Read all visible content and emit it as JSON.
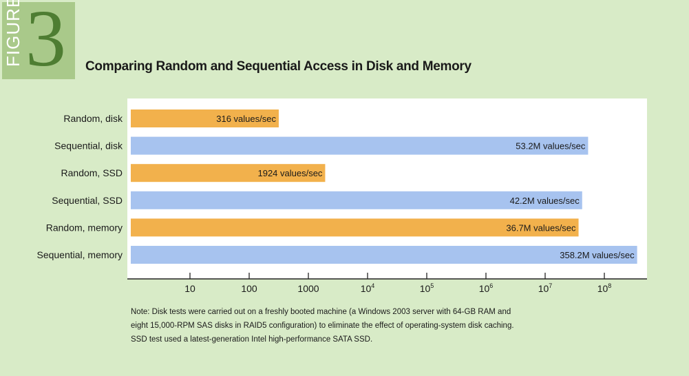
{
  "figure": {
    "label": "FIGURE",
    "number": "3"
  },
  "colors": {
    "orange": "#f2b14c",
    "blue": "#a7c3ef",
    "background": "#d8ebc7",
    "plot_bg": "#ffffff"
  },
  "chart_data": {
    "type": "bar",
    "orientation": "horizontal",
    "title": "Comparing Random and Sequential Access in Disk and Memory",
    "xscale": "log",
    "xlim": [
      1,
      1000000000
    ],
    "grid": false,
    "categories": [
      "Random, disk",
      "Sequential, disk",
      "Random, SSD",
      "Sequential, SSD",
      "Random, memory",
      "Sequential, memory"
    ],
    "values": [
      316,
      53200000,
      1924,
      42200000,
      36700000,
      358200000
    ],
    "value_labels": [
      "316 values/sec",
      "53.2M values/sec",
      "1924 values/sec",
      "42.2M values/sec",
      "36.7M values/sec",
      "358.2M values/sec"
    ],
    "bar_colors": [
      "#f2b14c",
      "#a7c3ef",
      "#f2b14c",
      "#a7c3ef",
      "#f2b14c",
      "#a7c3ef"
    ],
    "ticks": [
      {
        "value": 10,
        "base": "10",
        "exp": ""
      },
      {
        "value": 100,
        "base": "100",
        "exp": ""
      },
      {
        "value": 1000,
        "base": "1000",
        "exp": ""
      },
      {
        "value": 10000,
        "base": "10",
        "exp": "4"
      },
      {
        "value": 100000,
        "base": "10",
        "exp": "5"
      },
      {
        "value": 1000000,
        "base": "10",
        "exp": "6"
      },
      {
        "value": 10000000,
        "base": "10",
        "exp": "7"
      },
      {
        "value": 100000000,
        "base": "10",
        "exp": "8"
      }
    ]
  },
  "note": {
    "line1": "Note: Disk tests were carried out on a freshly booted machine (a Windows 2003 server with 64-GB RAM and",
    "line2": "eight 15,000-RPM SAS disks in RAID5 configuration) to eliminate the effect of operating-system disk caching.",
    "line3": "SSD test used a latest-generation Intel high-performance SATA SSD."
  }
}
